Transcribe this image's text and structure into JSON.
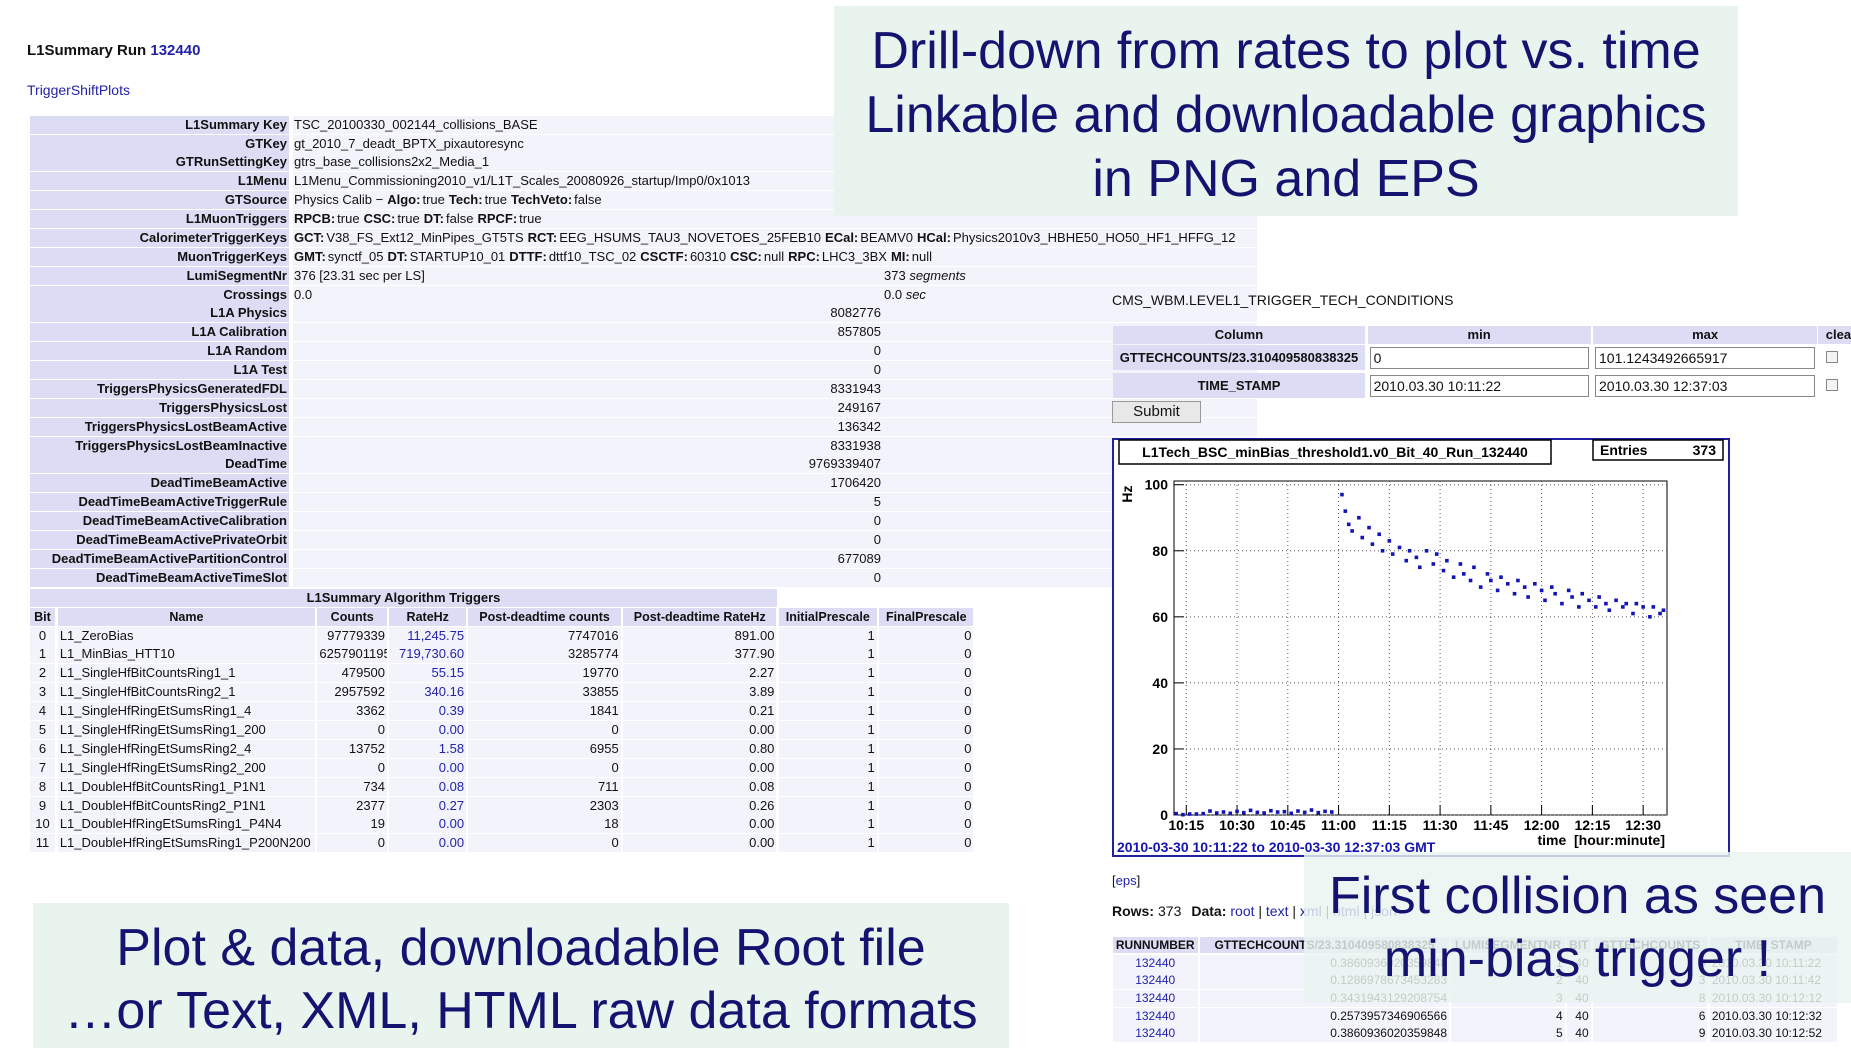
{
  "header": {
    "title": "L1Summary Run",
    "run": "132440",
    "link": "TriggerShiftPlots"
  },
  "summary": {
    "rows": [
      {
        "label": "L1Summary Key",
        "value": "TSC_20100330_002144_collisions_BASE"
      },
      {
        "label": "GTKey",
        "value": "gt_2010_7_deadt_BPTX_pixautoresync"
      },
      {
        "label": "GTRunSettingKey",
        "value": "gtrs_base_collisions2x2_Media_1"
      },
      {
        "label": "L1Menu",
        "value": "L1Menu_Commissioning2010_v1/L1T_Scales_20080926_startup/Imp0/0x1013"
      },
      {
        "label": "GTSource",
        "value": "Physics Calib  −",
        "flags": [
          {
            "k": "Algo:",
            "v": "true"
          },
          {
            "k": "Tech:",
            "v": "true"
          },
          {
            "k": "TechVeto:",
            "v": "false"
          }
        ]
      },
      {
        "label": "L1MuonTriggers",
        "flags": [
          {
            "k": "RPCB:",
            "v": "true"
          },
          {
            "k": "CSC:",
            "v": "true"
          },
          {
            "k": "DT:",
            "v": "false"
          },
          {
            "k": "RPCF:",
            "v": "true"
          }
        ]
      },
      {
        "label": "CalorimeterTriggerKeys",
        "flags": [
          {
            "k": "GCT:",
            "v": "V38_FS_Ext12_MinPipes_GT5TS"
          },
          {
            "k": "RCT:",
            "v": "EEG_HSUMS_TAU3_NOVETOES_25FEB10"
          },
          {
            "k": "ECal:",
            "v": "BEAMV0"
          },
          {
            "k": "HCal:",
            "v": "Physics2010v3_HBHE50_HO50_HF1_HFFG_12"
          }
        ]
      },
      {
        "label": "MuonTriggerKeys",
        "flags": [
          {
            "k": "GMT:",
            "v": "synctf_05"
          },
          {
            "k": "DT:",
            "v": "STARTUP10_01"
          },
          {
            "k": "DTTF:",
            "v": "dttf10_TSC_02"
          },
          {
            "k": "CSCTF:",
            "v": "60310"
          },
          {
            "k": "CSC:",
            "v": "null"
          },
          {
            "k": "RPC:",
            "v": "LHC3_3BX"
          },
          {
            "k": "MI:",
            "v": "null"
          }
        ]
      },
      {
        "label": "LumiSegmentNr",
        "value": "376 [23.31 sec per LS]",
        "extra": "373",
        "unit": "segments"
      },
      {
        "label": "Crossings",
        "value": "0.0",
        "extra": "0.0",
        "unit": "sec"
      },
      {
        "label": "L1A Physics",
        "count": 8082776
      },
      {
        "label": "L1A Calibration",
        "count": 857805
      },
      {
        "label": "L1A Random",
        "count": 0
      },
      {
        "label": "L1A Test",
        "count": 0
      },
      {
        "label": "TriggersPhysicsGeneratedFDL",
        "count": 8331943
      },
      {
        "label": "TriggersPhysicsLost",
        "count": 249167
      },
      {
        "label": "TriggersPhysicsLostBeamActive",
        "count": 136342
      },
      {
        "label": "TriggersPhysicsLostBeamInactive",
        "count": 8331938
      },
      {
        "label": "DeadTime",
        "count": 9769339407
      },
      {
        "label": "DeadTimeBeamActive",
        "count": 1706420
      },
      {
        "label": "DeadTimeBeamActiveTriggerRule",
        "count": 5
      },
      {
        "label": "DeadTimeBeamActiveCalibration",
        "count": 0
      },
      {
        "label": "DeadTimeBeamActivePrivateOrbit",
        "count": 0
      },
      {
        "label": "DeadTimeBeamActivePartitionControl",
        "count": 677089
      },
      {
        "label": "DeadTimeBeamActiveTimeSlot",
        "count": 0
      }
    ]
  },
  "algorithms": {
    "title": "L1Summary Algorithm Triggers",
    "columns": [
      "Bit",
      "Name",
      "Counts",
      "RateHz",
      "Post-deadtime counts",
      "Post-deadtime RateHz",
      "InitialPrescale",
      "FinalPrescale"
    ],
    "rows": [
      [
        0,
        "L1_ZeroBias",
        97779339,
        "11,245.75",
        7747016,
        "891.00",
        1,
        0
      ],
      [
        1,
        "L1_MinBias_HTT10",
        6257901195,
        "719,730.60",
        3285774,
        "377.90",
        1,
        0
      ],
      [
        2,
        "L1_SingleHfBitCountsRing1_1",
        479500,
        "55.15",
        19770,
        "2.27",
        1,
        0
      ],
      [
        3,
        "L1_SingleHfBitCountsRing2_1",
        2957592,
        "340.16",
        33855,
        "3.89",
        1,
        0
      ],
      [
        4,
        "L1_SingleHfRingEtSumsRing1_4",
        3362,
        "0.39",
        1841,
        "0.21",
        1,
        0
      ],
      [
        5,
        "L1_SingleHfRingEtSumsRing1_200",
        0,
        "0.00",
        0,
        "0.00",
        1,
        0
      ],
      [
        6,
        "L1_SingleHfRingEtSumsRing2_4",
        13752,
        "1.58",
        6955,
        "0.80",
        1,
        0
      ],
      [
        7,
        "L1_SingleHfRingEtSumsRing2_200",
        0,
        "0.00",
        0,
        "0.00",
        1,
        0
      ],
      [
        8,
        "L1_DoubleHfBitCountsRing1_P1N1",
        734,
        "0.08",
        711,
        "0.08",
        1,
        0
      ],
      [
        9,
        "L1_DoubleHfBitCountsRing2_P1N1",
        2377,
        "0.27",
        2303,
        "0.26",
        1,
        0
      ],
      [
        10,
        "L1_DoubleHfRingEtSumsRing1_P4N4",
        19,
        "0.00",
        18,
        "0.00",
        1,
        0
      ],
      [
        11,
        "L1_DoubleHfRingEtSumsRing1_P200N200",
        0,
        "0.00",
        0,
        "0.00",
        1,
        0
      ]
    ]
  },
  "conditions": {
    "table": "CMS_WBM.LEVEL1_TRIGGER_TECH_CONDITIONS",
    "columns": [
      "Column",
      "min",
      "max",
      "clea"
    ],
    "rows": [
      [
        "GTTECHCOUNTS/23.310409580838325",
        "0",
        "101.1243492665917"
      ],
      [
        "TIME_STAMP",
        "2010.03.30 10:11:22",
        "2010.03.30 12:37:03"
      ]
    ],
    "submit": "Submit"
  },
  "chart_data": {
    "type": "scatter",
    "title": "L1Tech_BSC_minBias_threshold1.v0_Bit_40_Run_132440",
    "entries_label": "Entries",
    "entries": 373,
    "ylabel": "Hz",
    "xlabel": "time  [hour:minute]",
    "footer": "2010-03-30 10:11:22 to 2010-03-30 12:37:03 GMT",
    "color": "#1414b4",
    "grid": true,
    "xlim": [
      611.37,
      757.05
    ],
    "xticks": [
      {
        "value": 615,
        "label": "10:15"
      },
      {
        "value": 630,
        "label": "10:30"
      },
      {
        "value": 645,
        "label": "10:45"
      },
      {
        "value": 660,
        "label": "11:00"
      },
      {
        "value": 675,
        "label": "11:15"
      },
      {
        "value": 690,
        "label": "11:30"
      },
      {
        "value": 705,
        "label": "11:45"
      },
      {
        "value": 720,
        "label": "12:00"
      },
      {
        "value": 735,
        "label": "12:15"
      },
      {
        "value": 750,
        "label": "12:30"
      }
    ],
    "ylim": [
      0,
      101.1243492665917
    ],
    "yticks": [
      0,
      20,
      40,
      60,
      80,
      100
    ],
    "x": [
      612,
      614,
      616,
      618,
      620,
      622,
      624,
      626,
      628,
      630,
      632,
      634,
      636,
      638,
      640,
      642,
      644,
      646,
      648,
      650,
      652,
      654,
      656,
      658,
      661,
      662,
      663,
      664,
      666,
      667,
      669,
      670,
      672,
      673,
      675,
      676,
      678,
      680,
      681,
      683,
      684,
      686,
      688,
      689,
      691,
      692,
      694,
      696,
      697,
      699,
      700,
      702,
      704,
      705,
      707,
      708,
      710,
      712,
      713,
      715,
      716,
      718,
      720,
      721,
      723,
      724,
      726,
      728,
      729,
      731,
      732,
      734,
      736,
      737,
      739,
      740,
      742,
      744,
      745,
      747,
      748,
      750,
      752,
      753,
      755,
      756
    ],
    "values": [
      0.4,
      0.1,
      0.3,
      0.3,
      0.4,
      1.2,
      0.6,
      0.9,
      0.5,
      1.1,
      0.7,
      1.4,
      0.8,
      0.6,
      1.3,
      0.9,
      1.0,
      0.5,
      1.2,
      0.8,
      1.5,
      0.7,
      1.1,
      0.9,
      97,
      92,
      88,
      86,
      90,
      84,
      87,
      82,
      85,
      80,
      83,
      79,
      81,
      77,
      80,
      78,
      75,
      80,
      76,
      79,
      74,
      77,
      72,
      76,
      73,
      71,
      75,
      69,
      73,
      71,
      68,
      72,
      70,
      67,
      71,
      69,
      66,
      70,
      68,
      65,
      69,
      67,
      64,
      68,
      66,
      63,
      67,
      65,
      63,
      66,
      64,
      62,
      65,
      63,
      64,
      61,
      64,
      63,
      60,
      63,
      61,
      62
    ]
  },
  "results": {
    "eps": "eps",
    "rows_label": "Rows:",
    "rows": 373,
    "data_label": "Data:",
    "formats": [
      "root",
      "text",
      "xml",
      "html",
      "json"
    ],
    "columns": [
      "RUNNUMBER",
      "GTTECHCOUNTS/23.310409580838325",
      "LUMISEGMENTNR",
      "BIT",
      "GTTECHCOUNTS",
      "TIME_STAMP"
    ],
    "data": [
      [
        "132440",
        "0.3860936020359848",
        "1",
        "40",
        "9",
        "2010.03.30 10:11:22"
      ],
      [
        "132440",
        "0.1286978673453283",
        "2",
        "40",
        "3",
        "2010.03.30 10:11:42"
      ],
      [
        "132440",
        "0.3431943129208754",
        "3",
        "40",
        "8",
        "2010.03.30 10:12:12"
      ],
      [
        "132440",
        "0.2573957346906566",
        "4",
        "40",
        "6",
        "2010.03.30 10:12:32"
      ],
      [
        "132440",
        "0.3860936020359848",
        "5",
        "40",
        "9",
        "2010.03.30 10:12:52"
      ]
    ]
  },
  "callouts": {
    "top": [
      "Drill-down from rates to plot vs. time",
      "Linkable and downloadable graphics",
      "in PNG and EPS"
    ],
    "bottom_left": [
      "Plot & data, downloadable Root file",
      "…or Text, XML, HTML raw data formats"
    ],
    "bottom_right": [
      "First collision as seen",
      "min-bias trigger !"
    ]
  }
}
